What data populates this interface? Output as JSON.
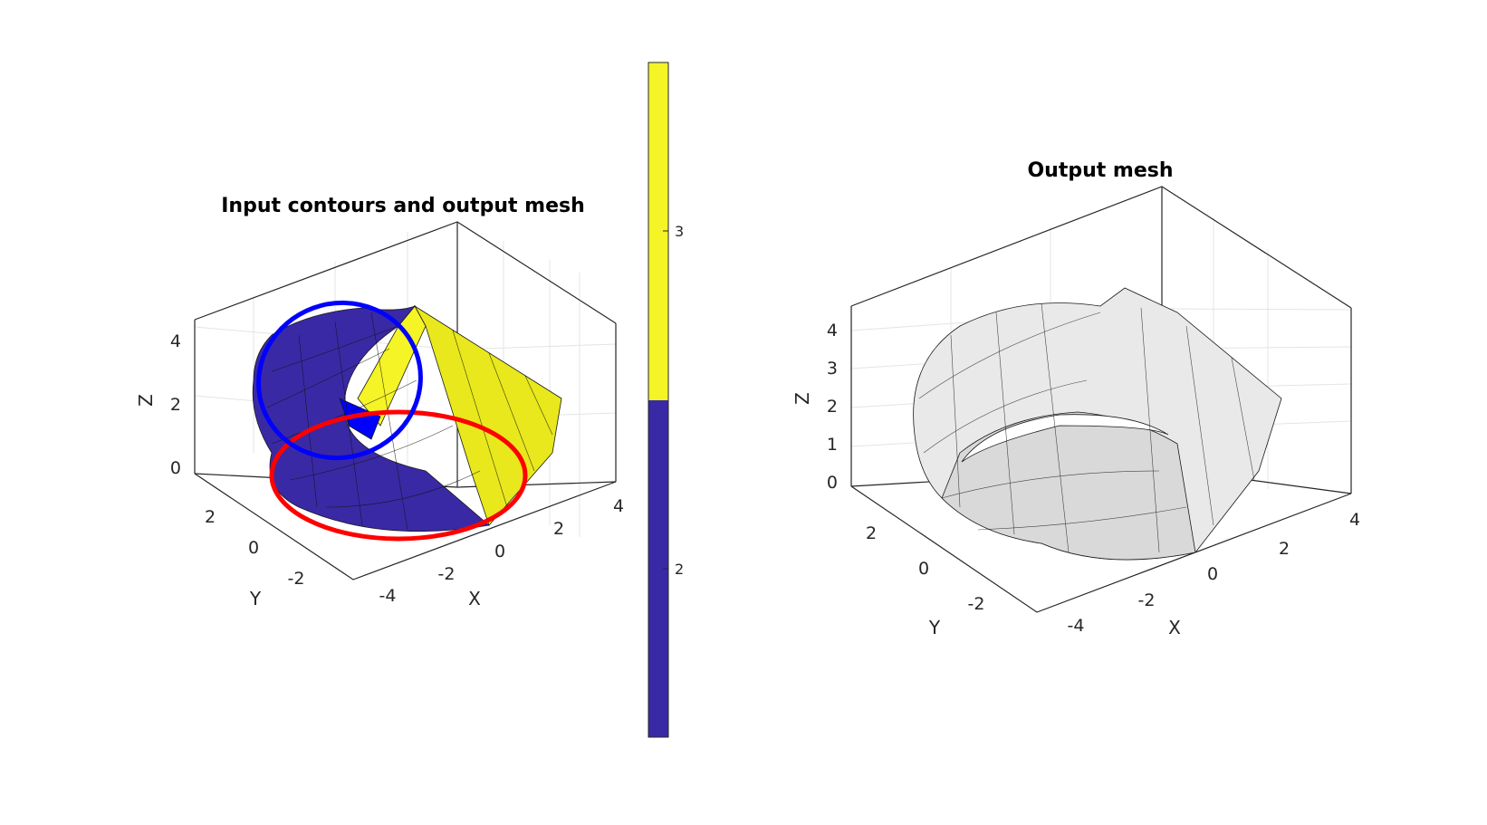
{
  "chart_data": [
    {
      "type": "surface3d",
      "title": "Input contours and output mesh",
      "xlabel": "X",
      "ylabel": "Y",
      "zlabel": "Z",
      "x_ticks": [
        "-4",
        "-2",
        "0",
        "2",
        "4"
      ],
      "y_ticks": [
        "-2",
        "0",
        "2"
      ],
      "z_ticks": [
        "0",
        "2",
        "4"
      ],
      "grid": true,
      "contours": [
        {
          "color": "#ff0000",
          "shape": "circle",
          "radius": 4,
          "z": 0
        },
        {
          "color": "#0000ff",
          "shape": "tilted-circle",
          "radius": 4,
          "z_range": [
            0,
            4.5
          ]
        }
      ],
      "face_colors": {
        "2": "#3a29a4",
        "3": "#f4f426"
      }
    },
    {
      "type": "colorbar",
      "ticks": [
        "2",
        "3"
      ],
      "range": [
        1.5,
        3.5
      ],
      "bands": [
        {
          "value": 2,
          "color": "#3a29a4"
        },
        {
          "value": 3,
          "color": "#f4f426"
        }
      ]
    },
    {
      "type": "surface3d",
      "title": "Output mesh",
      "xlabel": "X",
      "ylabel": "Y",
      "zlabel": "Z",
      "x_ticks": [
        "-4",
        "-2",
        "0",
        "2",
        "4"
      ],
      "y_ticks": [
        "-2",
        "0",
        "2"
      ],
      "z_ticks": [
        "0",
        "1",
        "2",
        "3",
        "4"
      ],
      "grid": true,
      "face_color": "#e6e6e6"
    }
  ]
}
